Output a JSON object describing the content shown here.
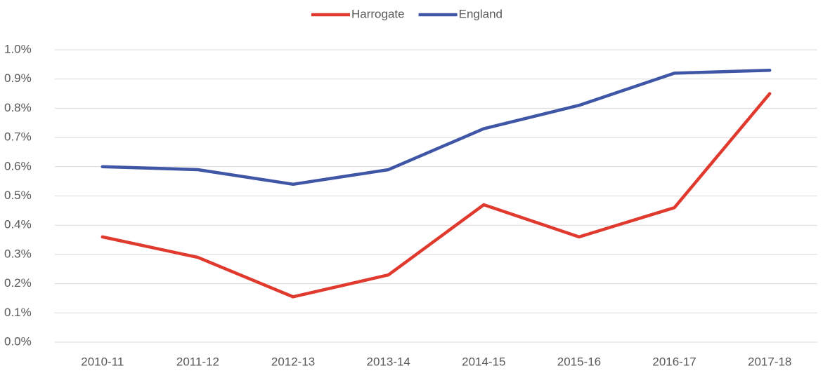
{
  "chart_data": {
    "type": "line",
    "categories": [
      "2010-11",
      "2011-12",
      "2012-13",
      "2013-14",
      "2014-15",
      "2015-16",
      "2016-17",
      "2017-18"
    ],
    "series": [
      {
        "name": "Harrogate",
        "color": "#e03a2e",
        "values": [
          0.36,
          0.29,
          0.155,
          0.23,
          0.47,
          0.36,
          0.46,
          0.85
        ]
      },
      {
        "name": "England",
        "color": "#3f56a6",
        "values": [
          0.6,
          0.59,
          0.54,
          0.59,
          0.73,
          0.81,
          0.92,
          0.93
        ]
      }
    ],
    "ylim": [
      0,
      1.0
    ],
    "yticks": [
      {
        "value": 0,
        "label": "0.0%"
      },
      {
        "value": 0.1,
        "label": "0.1%"
      },
      {
        "value": 0.2,
        "label": "0.2%"
      },
      {
        "value": 0.3,
        "label": "0.3%"
      },
      {
        "value": 0.4,
        "label": "0.4%"
      },
      {
        "value": 0.5,
        "label": "0.5%"
      },
      {
        "value": 0.6,
        "label": "0.6%"
      },
      {
        "value": 0.7,
        "label": "0.7%"
      },
      {
        "value": 0.8,
        "label": "0.8%"
      },
      {
        "value": 0.9,
        "label": "0.9%"
      },
      {
        "value": 1.0,
        "label": "1.0%"
      }
    ],
    "grid": true,
    "legend": "top"
  }
}
